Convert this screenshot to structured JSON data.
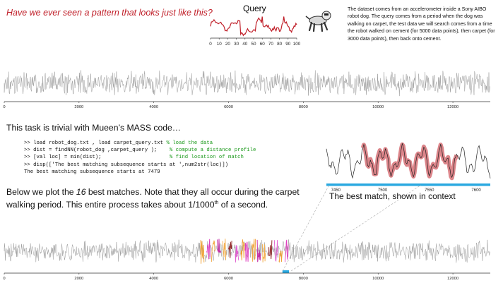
{
  "headline": "Have we ever seen a pattern that looks just like this?",
  "query": {
    "title": "Query",
    "ticks": [
      0,
      10,
      20,
      30,
      40,
      50,
      60,
      70,
      80,
      90,
      100
    ],
    "color": "#c0202a"
  },
  "dog_icon": "robot-dog-icon",
  "description": "The dataset comes from an accelerometer inside a Sony AIBO robot dog. The query comes from a period when the dog was walking on carpet, the test data we will search comes from a time the robot walked on cement (for 5000 data points), then carpet (for 3000 data points), then back onto cement.",
  "series": {
    "axis_ticks": [
      "0",
      "2000",
      "4000",
      "6000",
      "8000",
      "10000",
      "12000"
    ],
    "axis_values": [
      0,
      2000,
      4000,
      6000,
      8000,
      10000,
      12000
    ],
    "length": 13000,
    "line_color": "#999999"
  },
  "intro_prefix": "This task is trivial with Mueen’s MASS code…",
  "code_lines": [
    {
      "code": ">> load robot_dog.txt , load carpet_query.txt ",
      "comment": "% load the data"
    },
    {
      "code": ">> dist = findNN(robot_dog ,carpet_query );    ",
      "comment": "% compute a distance profile"
    },
    {
      "code": ">> [val loc] = min(dist);                      ",
      "comment": "% find location of match"
    },
    {
      "code": ">> disp(['The best matching subsequence starts at ',num2str(loc)])",
      "comment": ""
    },
    {
      "code": "The best matching subsequence starts at 7479",
      "comment": ""
    }
  ],
  "below_text": {
    "part1": "Below we plot the ",
    "number": "16",
    "part2": " best matches. Note that they all occur during the carpet walking period. This entire process takes about 1/1000",
    "sup": "th",
    "part3": " of a second."
  },
  "context": {
    "caption": "The best match, shown in context",
    "ticks": [
      "7450",
      "7500",
      "7550",
      "7600"
    ],
    "tick_values": [
      7450,
      7500,
      7550,
      7600
    ],
    "xrange": [
      7440,
      7615
    ],
    "match_start": 7479,
    "match_length": 100,
    "bar_color": "#29a8e0",
    "match_color": "#c0202a"
  },
  "match_colors": [
    "#f0a030",
    "#e040c0",
    "#f2a640",
    "#c020a0",
    "#f4b050",
    "#8b1a1a",
    "#e060d0"
  ],
  "carpet_region": [
    5000,
    8000
  ],
  "best_match_highlight_color": "#29a8e0"
}
